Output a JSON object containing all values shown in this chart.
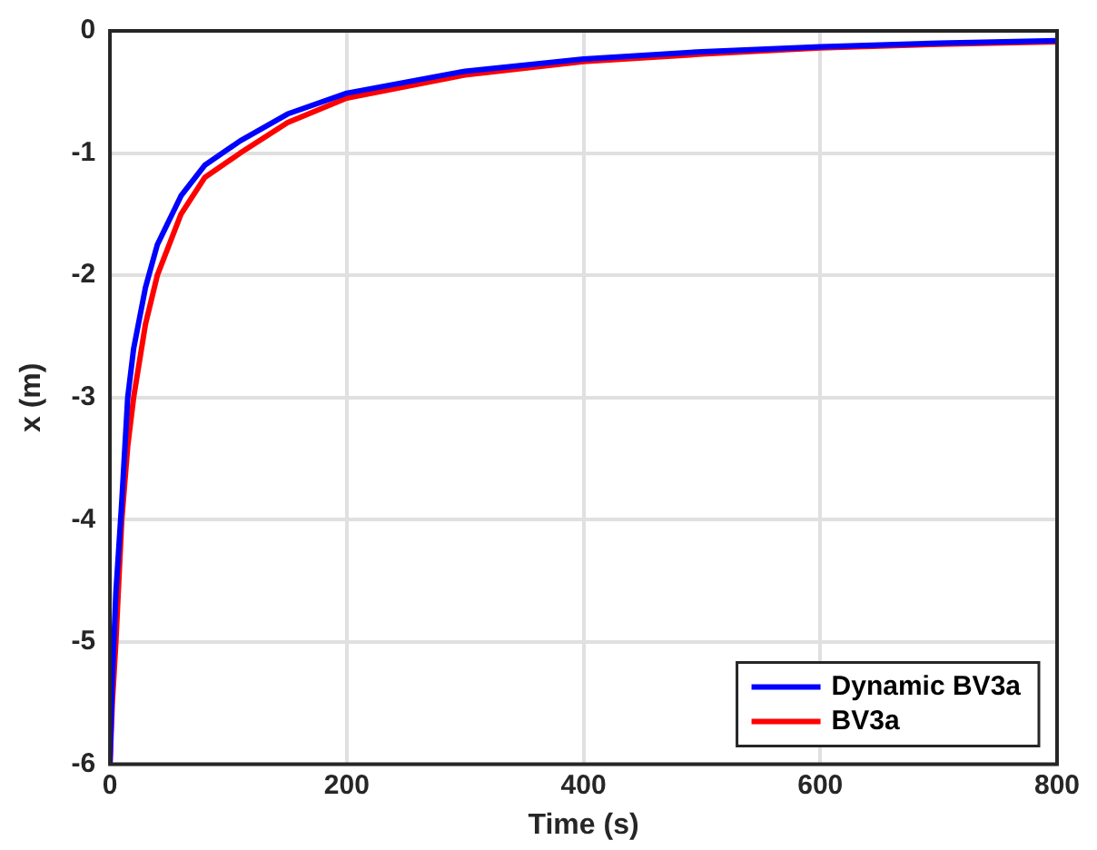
{
  "chart_data": {
    "type": "line",
    "xlabel": "Time (s)",
    "ylabel": "x (m)",
    "xlim": [
      0,
      800
    ],
    "xticks": [
      0,
      200,
      400,
      600,
      800
    ],
    "ylim": [
      -6,
      0
    ],
    "yticks": [
      -6,
      -5,
      -4,
      -3,
      -2,
      -1,
      0
    ],
    "grid": true,
    "legend": "bottom right",
    "marker": "none",
    "line_style": "solid",
    "series": [
      {
        "name": "Dynamic BV3a",
        "color": "#0000ff",
        "x": [
          0,
          2,
          5,
          10,
          15,
          20,
          30,
          40,
          60,
          80,
          110,
          150,
          200,
          300,
          400,
          500,
          600,
          700,
          800
        ],
        "values": [
          -6,
          -5.3,
          -4.6,
          -3.85,
          -3.0,
          -2.6,
          -2.1,
          -1.75,
          -1.35,
          -1.1,
          -0.9,
          -0.68,
          -0.51,
          -0.33,
          -0.23,
          -0.17,
          -0.13,
          -0.1,
          -0.08
        ]
      },
      {
        "name": "BV3a",
        "color": "#ff0000",
        "x": [
          0,
          2,
          5,
          10,
          15,
          20,
          30,
          40,
          60,
          80,
          110,
          150,
          200,
          300,
          400,
          500,
          600,
          700,
          800
        ],
        "values": [
          -6,
          -5.5,
          -5,
          -4,
          -3.4,
          -3,
          -2.4,
          -2,
          -1.5,
          -1.2,
          -1,
          -0.75,
          -0.55,
          -0.36,
          -0.25,
          -0.19,
          -0.14,
          -0.11,
          -0.09
        ]
      }
    ]
  }
}
